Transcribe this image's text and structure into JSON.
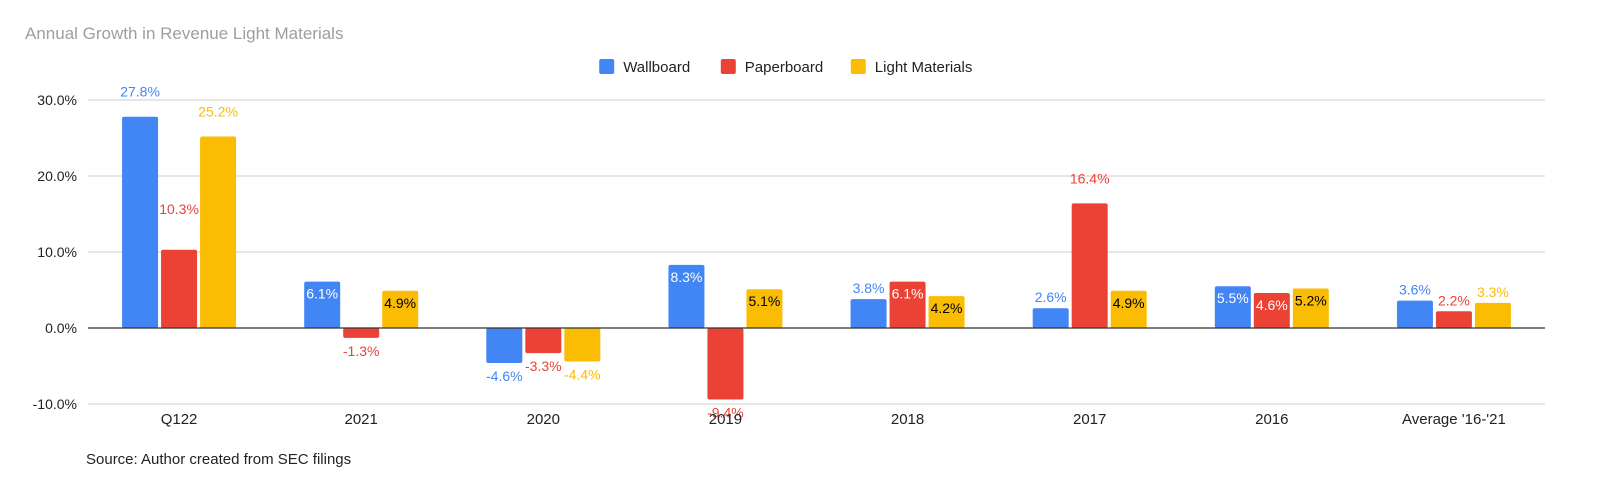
{
  "title": "Annual Growth in Revenue Light Materials",
  "source": "Source: Author created from SEC filings",
  "colors": {
    "wallboard": "#4285f4",
    "paperboard": "#ea4335",
    "light_materials": "#fbbc04",
    "gridline": "#cccccc",
    "baseline": "#333333"
  },
  "chart_data": {
    "type": "bar",
    "title": "Annual Growth in Revenue Light Materials",
    "xlabel": "",
    "ylabel": "",
    "categories": [
      "Q122",
      "2021",
      "2020",
      "2019",
      "2018",
      "2017",
      "2016",
      "Average '16-'21"
    ],
    "series": [
      {
        "name": "Wallboard",
        "color": "#4285f4",
        "values": [
          27.8,
          6.1,
          -4.6,
          8.3,
          3.8,
          2.6,
          5.5,
          3.6
        ],
        "labels": [
          "27.8%",
          "6.1%",
          "-4.6%",
          "8.3%",
          "3.8%",
          "2.6%",
          "5.5%",
          "3.6%"
        ]
      },
      {
        "name": "Paperboard",
        "color": "#ea4335",
        "values": [
          10.3,
          -1.3,
          -3.3,
          -9.4,
          6.1,
          16.4,
          4.6,
          2.2
        ],
        "labels": [
          "10.3%",
          "-1.3%",
          "-3.3%",
          "-9.4%",
          "6.1%",
          "16.4%",
          "4.6%",
          "2.2%"
        ]
      },
      {
        "name": "Light Materials",
        "color": "#fbbc04",
        "values": [
          25.2,
          4.9,
          -4.4,
          5.1,
          4.2,
          4.9,
          5.2,
          3.3
        ],
        "labels": [
          "25.2%",
          "4.9%",
          "-4.4%",
          "5.1%",
          "4.2%",
          "4.9%",
          "5.2%",
          "3.3%"
        ]
      }
    ],
    "ylim": [
      -10,
      30
    ],
    "yticks": [
      30,
      20,
      10,
      0,
      -10
    ],
    "ytick_labels": [
      "30.0%",
      "20.0%",
      "10.0%",
      "0.0%",
      "-10.0%"
    ],
    "grid": true,
    "legend_position": "top-center"
  }
}
